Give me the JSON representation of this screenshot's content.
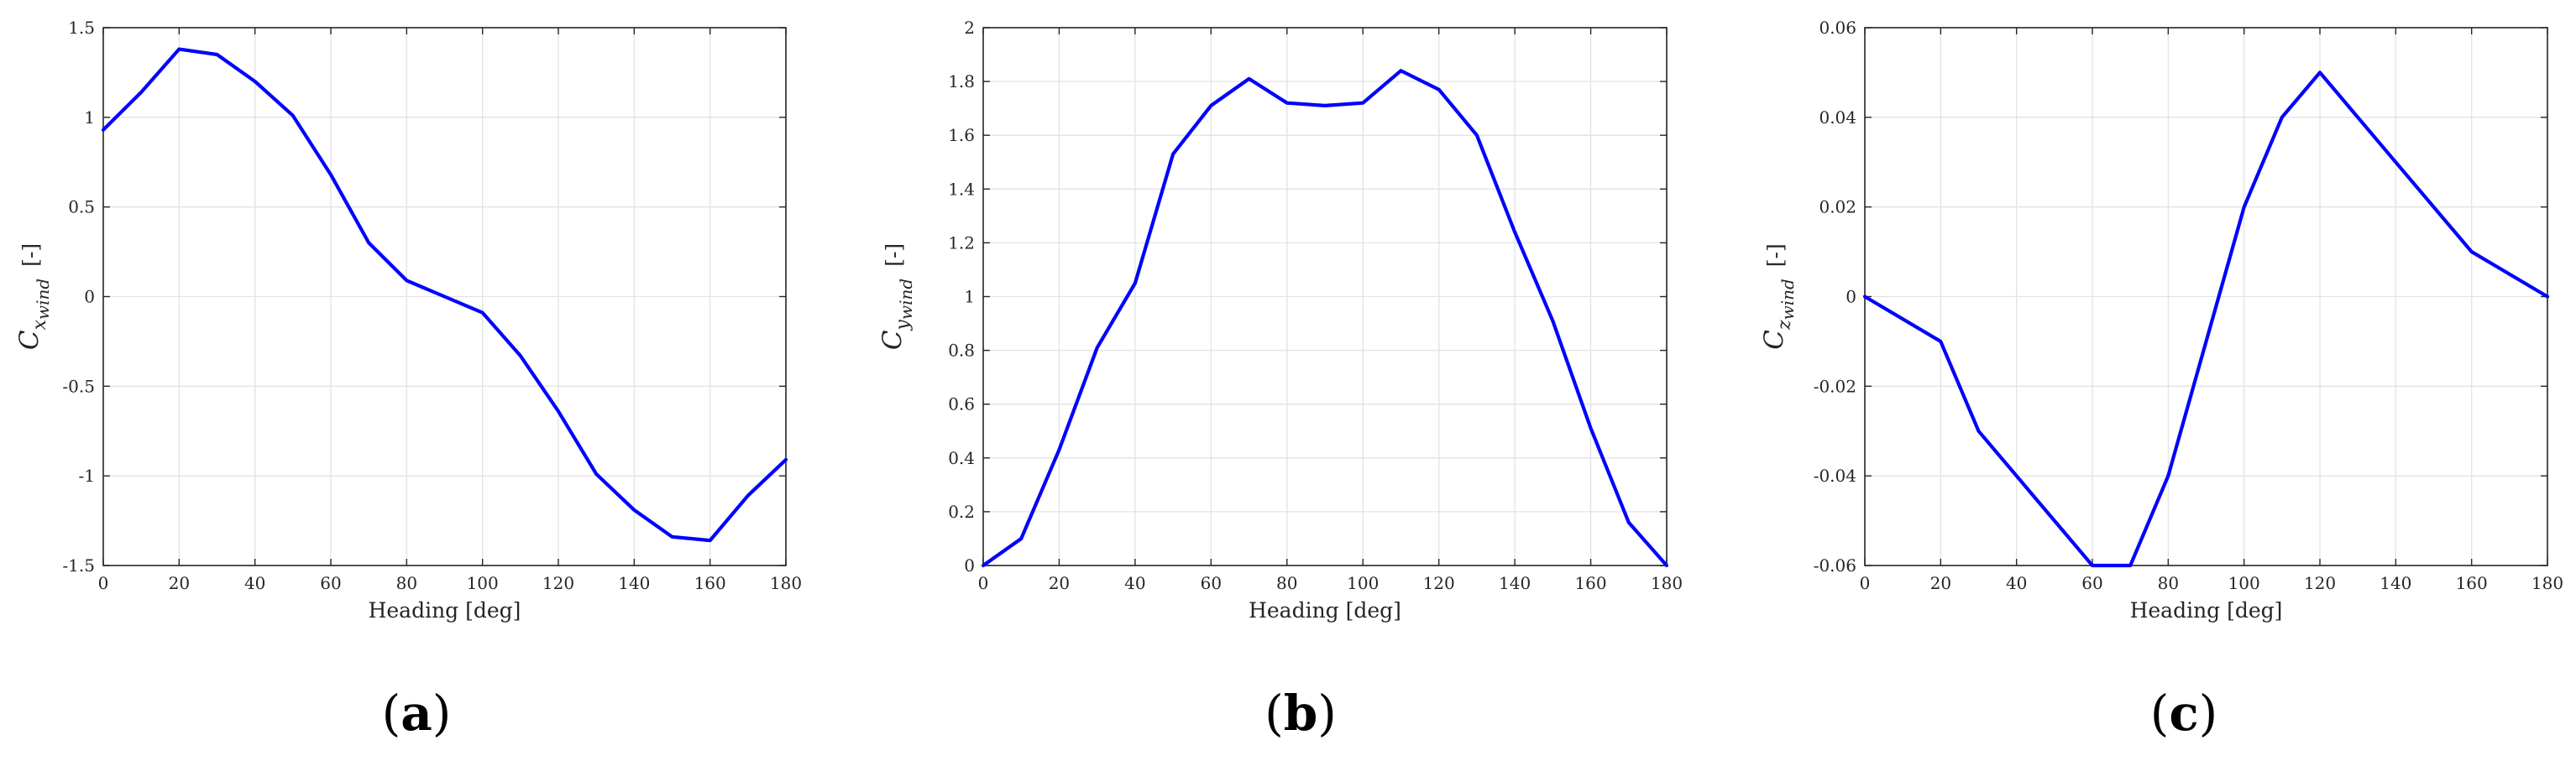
{
  "chart_data": [
    {
      "type": "line",
      "panel_label": "a",
      "xlabel": "Heading [deg]",
      "ylabel": {
        "symbol": "C",
        "subscript_var": "x",
        "subscript_word": "wind",
        "unit": "[-]"
      },
      "xlim": [
        0,
        180
      ],
      "ylim": [
        -1.5,
        1.5
      ],
      "xticks": [
        0,
        20,
        40,
        60,
        80,
        100,
        120,
        140,
        160,
        180
      ],
      "yticks": [
        -1.5,
        -1,
        -0.5,
        0,
        0.5,
        1,
        1.5
      ],
      "ytick_labels": [
        "-1.5",
        "-1",
        "-0.5",
        "0",
        "0.5",
        "1",
        "1.5"
      ],
      "grid": true,
      "series": [
        {
          "color": "#0000ff",
          "x": [
            0,
            10,
            20,
            30,
            40,
            50,
            60,
            70,
            80,
            90,
            100,
            110,
            120,
            130,
            140,
            150,
            160,
            170,
            180
          ],
          "y": [
            0.93,
            1.14,
            1.38,
            1.35,
            1.2,
            1.01,
            0.68,
            0.3,
            0.09,
            0.0,
            -0.09,
            -0.33,
            -0.64,
            -0.99,
            -1.19,
            -1.34,
            -1.36,
            -1.11,
            -0.91
          ]
        }
      ]
    },
    {
      "type": "line",
      "panel_label": "b",
      "xlabel": "Heading [deg]",
      "ylabel": {
        "symbol": "C",
        "subscript_var": "y",
        "subscript_word": "wind",
        "unit": "[-]"
      },
      "xlim": [
        0,
        180
      ],
      "ylim": [
        0,
        2
      ],
      "xticks": [
        0,
        20,
        40,
        60,
        80,
        100,
        120,
        140,
        160,
        180
      ],
      "yticks": [
        0,
        0.2,
        0.4,
        0.6,
        0.8,
        1,
        1.2,
        1.4,
        1.6,
        1.8,
        2
      ],
      "ytick_labels": [
        "0",
        "0.2",
        "0.4",
        "0.6",
        "0.8",
        "1",
        "1.2",
        "1.4",
        "1.6",
        "1.8",
        "2"
      ],
      "grid": true,
      "series": [
        {
          "color": "#0000ff",
          "x": [
            0,
            10,
            20,
            30,
            40,
            50,
            60,
            70,
            80,
            90,
            100,
            110,
            120,
            130,
            140,
            150,
            160,
            170,
            180
          ],
          "y": [
            0.0,
            0.1,
            0.43,
            0.81,
            1.05,
            1.53,
            1.71,
            1.81,
            1.72,
            1.71,
            1.72,
            1.84,
            1.77,
            1.6,
            1.24,
            0.91,
            0.51,
            0.16,
            0.0
          ]
        }
      ]
    },
    {
      "type": "line",
      "panel_label": "c",
      "xlabel": "Heading [deg]",
      "ylabel": {
        "symbol": "C",
        "subscript_var": "z",
        "subscript_word": "wind",
        "unit": "[-]"
      },
      "xlim": [
        0,
        180
      ],
      "ylim": [
        -0.06,
        0.06
      ],
      "xticks": [
        0,
        20,
        40,
        60,
        80,
        100,
        120,
        140,
        160,
        180
      ],
      "yticks": [
        -0.06,
        -0.04,
        -0.02,
        0,
        0.02,
        0.04,
        0.06
      ],
      "ytick_labels": [
        "-0.06",
        "-0.04",
        "-0.02",
        "0",
        "0.02",
        "0.04",
        "0.06"
      ],
      "grid": true,
      "series": [
        {
          "color": "#0000ff",
          "x": [
            0,
            20,
            30,
            60,
            70,
            80,
            100,
            110,
            120,
            140,
            160,
            180
          ],
          "y": [
            0.0,
            -0.01,
            -0.03,
            -0.06,
            -0.06,
            -0.04,
            0.02,
            0.04,
            0.05,
            0.03,
            0.01,
            0.0
          ]
        }
      ]
    }
  ],
  "colors": {
    "line": "#0000ff",
    "grid": "#e3e3e3",
    "axes": "#262626"
  }
}
